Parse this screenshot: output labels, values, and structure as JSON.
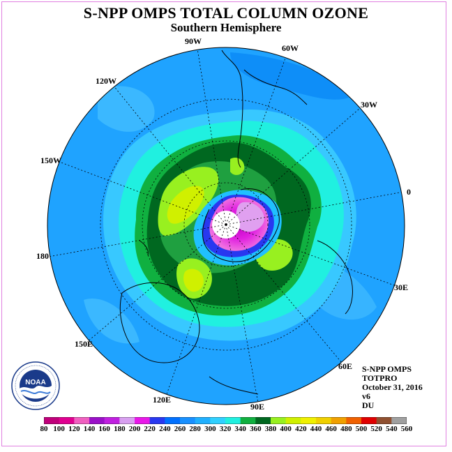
{
  "header": {
    "title": "S-NPP OMPS TOTAL COLUMN OZONE",
    "subtitle": "Southern Hemisphere"
  },
  "map": {
    "longitude_labels": [
      "90W",
      "60W",
      "30W",
      "0",
      "30E",
      "60E",
      "90E",
      "120E",
      "150E",
      "180",
      "150W",
      "120W"
    ],
    "ozone_field": {
      "units": "DU",
      "center": "ozone hole over Antarctica (minimum values in magenta/pink)",
      "collar": "high-ozone ring with yellow-green maxima",
      "outer": "blue/cyan values toward the equator"
    }
  },
  "info": {
    "instrument": "S-NPP OMPS",
    "product": "TOTPRO",
    "date": "October 31, 2016",
    "version": "v6",
    "units": "DU"
  },
  "logo": {
    "text": "NOAA",
    "ring_text": "NATIONAL OCEANIC AND ATMOSPHERIC ADMINISTRATION · U.S. DEPARTMENT OF COMMERCE"
  },
  "colorbar": {
    "labels": [
      "80",
      "100",
      "120",
      "140",
      "160",
      "180",
      "200",
      "220",
      "240",
      "260",
      "280",
      "300",
      "320",
      "340",
      "360",
      "380",
      "400",
      "420",
      "440",
      "460",
      "480",
      "500",
      "520",
      "540",
      "560"
    ],
    "colors": [
      "#c0007a",
      "#e00090",
      "#f060c0",
      "#9a10c8",
      "#c020e0",
      "#d8a0f0",
      "#e818e8",
      "#2838f0",
      "#0070ff",
      "#1890ff",
      "#20b0ff",
      "#30d0ff",
      "#20f0e0",
      "#10b040",
      "#006820",
      "#98f020",
      "#d0f000",
      "#f0f000",
      "#f0d000",
      "#f0a000",
      "#f06000",
      "#e00000",
      "#905030",
      "#a0a0a0",
      "#707070"
    ]
  }
}
